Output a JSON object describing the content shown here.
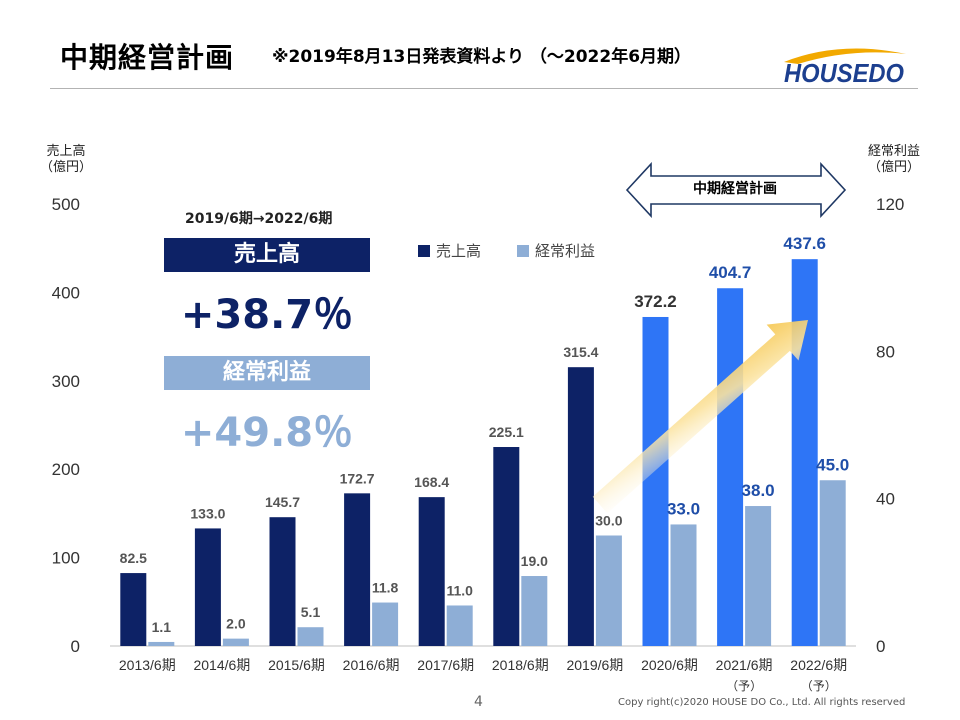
{
  "header": {
    "title": "中期経営計画",
    "subtitle": "※2019年8月13日発表資料より （〜2022年6月期）",
    "logo_text": "HOUSEDO"
  },
  "axes": {
    "left_caption_line1": "売上高",
    "left_caption_line2": "（億円）",
    "right_caption_line1": "経常利益",
    "right_caption_line2": "（億円）"
  },
  "plan_label": "中期経営計画",
  "summary": {
    "period": "2019/6期→2022/6期",
    "sales_label": "売上高",
    "sales_pct": "+38.7％",
    "profit_label": "経常利益",
    "profit_pct": "+49.8％"
  },
  "footer": {
    "page_number": "4",
    "copyright": "Copy right(c)2020  HOUSE DO Co., Ltd. All rights reserved"
  },
  "colors": {
    "sales_actual": "#0d2266",
    "sales_plan": "#2e75f6",
    "profit": "#8eaed6",
    "plan_arrow": "#f5c242",
    "summary_navy": "#0d2266",
    "summary_light": "#8eaed6"
  },
  "chart_data": {
    "type": "bar",
    "categories": [
      "2013/6期",
      "2014/6期",
      "2015/6期",
      "2016/6期",
      "2017/6期",
      "2018/6期",
      "2019/6期",
      "2020/6期",
      "2021/6期",
      "2022/6期"
    ],
    "category_notes": [
      "",
      "",
      "",
      "",
      "",
      "",
      "",
      "",
      "（予）",
      "（予）"
    ],
    "plan_from_index": 7,
    "series": [
      {
        "name": "売上高",
        "axis": "left",
        "values": [
          82.5,
          133.0,
          145.7,
          172.7,
          168.4,
          225.1,
          315.4,
          372.2,
          404.7,
          437.6
        ],
        "labels": [
          "82.5",
          "133.0",
          "145.7",
          "172.7",
          "168.4",
          "225.1",
          "315.4",
          "372.2",
          "404.7",
          "437.6"
        ]
      },
      {
        "name": "経常利益",
        "axis": "right",
        "values": [
          1.1,
          2.0,
          5.1,
          11.8,
          11.0,
          19.0,
          30.0,
          33.0,
          38.0,
          45.0
        ],
        "labels": [
          "1.1",
          "2.0",
          "5.1",
          "11.8",
          "11.0",
          "19.0",
          "30.0",
          "33.0",
          "38.0",
          "45.0"
        ]
      }
    ],
    "ylim_left": [
      0,
      500
    ],
    "yticks_left": [
      "0",
      "100",
      "200",
      "300",
      "400",
      "500"
    ],
    "ylim_right": [
      0,
      120
    ],
    "yticks_right": [
      "0",
      "40",
      "80",
      "120"
    ],
    "legend_position": "top-center",
    "grid": false
  }
}
